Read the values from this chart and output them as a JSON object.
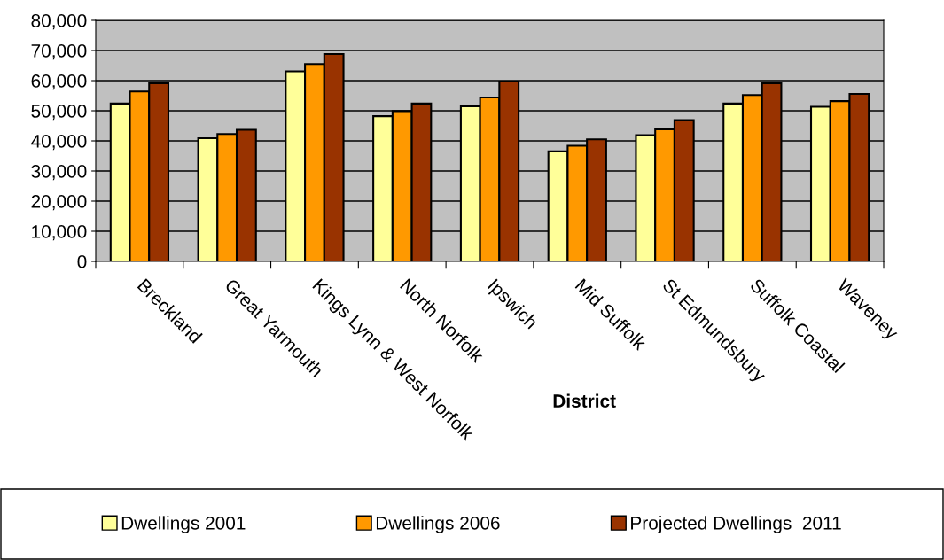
{
  "chart_data": {
    "type": "bar",
    "xlabel": "District",
    "categories": [
      "Breckland",
      "Great Yarmouth",
      "Kings Lynn & West Norfolk",
      "North Norfolk",
      "Ipswich",
      "Mid Suffolk",
      "St Edmundsbury",
      "Suffolk Coastal",
      "Waveney"
    ],
    "series": [
      {
        "name": "Dwellings 2001",
        "color": "#ffff99",
        "values": [
          52400,
          40900,
          63100,
          48200,
          51500,
          36500,
          41900,
          52400,
          51300
        ]
      },
      {
        "name": "Dwellings 2006",
        "color": "#ff9900",
        "values": [
          56400,
          42300,
          65500,
          49900,
          54400,
          38400,
          43800,
          55200,
          53200
        ]
      },
      {
        "name": "Projected Dwellings  2011",
        "color": "#993300",
        "values": [
          59100,
          43700,
          68800,
          52400,
          59700,
          40500,
          46900,
          59100,
          55600
        ]
      }
    ],
    "ylim": [
      0,
      80000
    ],
    "yticks": [
      {
        "value": 0,
        "label": "0"
      },
      {
        "value": 10000,
        "label": "10,000"
      },
      {
        "value": 20000,
        "label": "20,000"
      },
      {
        "value": 30000,
        "label": "30,000"
      },
      {
        "value": 40000,
        "label": "40,000"
      },
      {
        "value": 50000,
        "label": "50,000"
      },
      {
        "value": 60000,
        "label": "60,000"
      },
      {
        "value": 70000,
        "label": "70,000"
      },
      {
        "value": 80000,
        "label": "80,000"
      }
    ],
    "grid": "y",
    "legend": "bottom"
  }
}
